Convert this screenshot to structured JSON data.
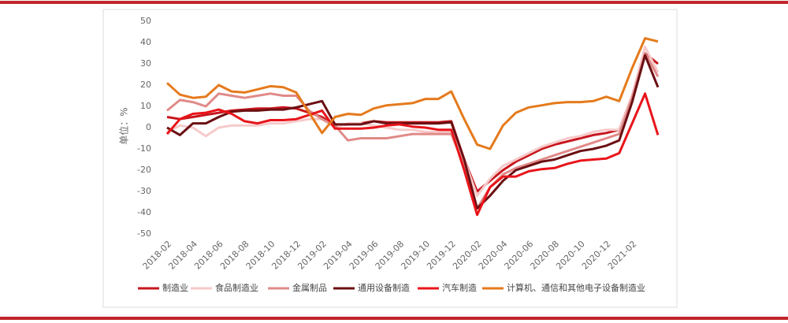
{
  "chart_data": {
    "type": "line",
    "y_label": "单位：%",
    "categories": [
      "2018-02",
      null,
      "2018-04",
      null,
      "2018-06",
      null,
      "2018-08",
      null,
      "2018-10",
      null,
      "2018-12",
      null,
      "2019-02",
      null,
      "2019-04",
      null,
      "2019-06",
      null,
      "2019-08",
      null,
      "2019-10",
      null,
      "2019-12",
      null,
      "2020-02",
      null,
      "2020-04",
      null,
      "2020-06",
      null,
      "2020-08",
      null,
      "2020-10",
      null,
      "2020-12",
      null,
      "2021-02",
      null,
      null
    ],
    "series": [
      {
        "name": "制造业",
        "color": "#c8161d",
        "values": [
          5,
          4,
          5,
          6,
          7,
          8,
          8.5,
          9,
          9,
          9.5,
          9,
          7,
          5,
          1,
          1.5,
          2,
          3,
          2.5,
          2.5,
          2.5,
          2.5,
          2.5,
          3,
          -15,
          -30,
          -25,
          -20,
          -16,
          -13,
          -10,
          -8,
          -6.5,
          -5,
          -3.5,
          -2.5,
          -1,
          15,
          35,
          30
        ]
      },
      {
        "name": "食品制造业",
        "color": "#f6caca",
        "values": [
          -2,
          1,
          0,
          -4,
          0,
          1,
          1,
          1,
          2,
          2,
          3,
          4,
          4,
          0,
          2,
          2,
          1,
          0,
          -1,
          -1,
          -2,
          -2,
          -2,
          -15,
          -32,
          -24,
          -18,
          -15,
          -12,
          -9,
          -7,
          -5,
          -4,
          -2,
          -1,
          -1,
          15,
          38,
          26
        ]
      },
      {
        "name": "金属制品",
        "color": "#e08a88",
        "values": [
          8,
          13,
          12,
          10,
          16,
          15,
          14,
          15,
          16,
          15,
          15,
          8,
          4,
          1,
          -6,
          -5,
          -5,
          -5,
          -4,
          -3,
          -3,
          -3,
          -3,
          -18,
          -38,
          -28,
          -22,
          -19,
          -17,
          -15,
          -13,
          -11,
          -9,
          -7,
          -5,
          -3,
          14,
          35,
          24
        ]
      },
      {
        "name": "通用设备制造",
        "color": "#6b0f12",
        "values": [
          0,
          -3.5,
          2,
          2,
          5,
          7.5,
          8,
          8,
          8.5,
          8.5,
          9.5,
          11,
          12.5,
          1.5,
          1.5,
          1.5,
          3,
          2,
          2,
          2,
          2,
          2,
          2.5,
          -15,
          -38,
          -32,
          -25,
          -20,
          -18,
          -16,
          -15,
          -13,
          -11,
          -10,
          -8.5,
          -6,
          12,
          34,
          19
        ]
      },
      {
        "name": "汽车制造",
        "color": "#e8141a",
        "values": [
          -3,
          4,
          6.5,
          7,
          8.5,
          6.5,
          3,
          2,
          3.5,
          3.5,
          4,
          6,
          8,
          -0.5,
          -0.5,
          -0.5,
          0,
          1,
          1.5,
          0.5,
          0,
          -1,
          -1,
          -20,
          -41,
          -28,
          -23,
          -23,
          -20.5,
          -19.5,
          -19,
          -17,
          -15.5,
          -15,
          -14.5,
          -12,
          2,
          16,
          -3.5
        ]
      },
      {
        "name": "计算机、通信和其他电子设备制造业",
        "color": "#e57a1c",
        "values": [
          21,
          15.5,
          14,
          14.5,
          20,
          17,
          16.5,
          18,
          19.5,
          19,
          16.5,
          7,
          -2.5,
          5,
          6.5,
          6,
          9,
          10.5,
          11,
          11.5,
          13.5,
          13.5,
          17,
          4,
          -8,
          -10,
          1,
          7,
          9.5,
          10.5,
          11.5,
          12,
          12,
          12.5,
          14.5,
          12.5,
          28,
          42,
          40.5
        ]
      }
    ],
    "ylim": [
      -50,
      50
    ],
    "yticks": [
      -50,
      -40,
      -30,
      -20,
      -10,
      0,
      10,
      20,
      30,
      40,
      50
    ],
    "grid": false
  }
}
